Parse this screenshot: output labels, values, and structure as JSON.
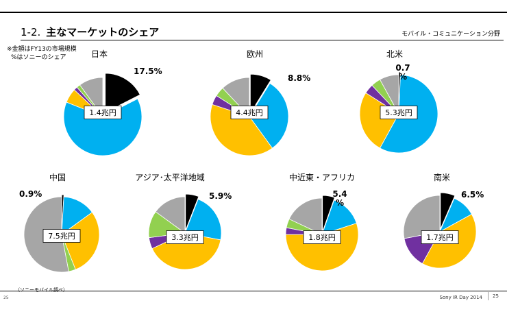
{
  "header": {
    "section_number": "1-2.",
    "title": "主なマーケットのシェア",
    "division": "モバイル・コミュニケーション分野"
  },
  "note": {
    "line1": "※金額はFY13の市場規模",
    "line2": "%はソニーのシェア"
  },
  "footer": {
    "source": "（ソニーモバイル調べ）",
    "page_left": "25",
    "event": "Sony IR Day 2014",
    "page_right": "25"
  },
  "colors": {
    "sony": "#000000",
    "blue": "#00b0f0",
    "orange": "#ffc000",
    "purple": "#7030a0",
    "green": "#92d050",
    "gray": "#a6a6a6"
  },
  "chart_data": [
    {
      "type": "pie",
      "title": "日本",
      "market_size": "1.4兆円",
      "share_label": "17.5%",
      "slices": [
        {
          "name": "sony",
          "value": 17.5
        },
        {
          "name": "blue",
          "value": 63.5
        },
        {
          "name": "orange",
          "value": 6
        },
        {
          "name": "purple",
          "value": 1.5
        },
        {
          "name": "green",
          "value": 1.5
        },
        {
          "name": "gray",
          "value": 10
        }
      ]
    },
    {
      "type": "pie",
      "title": "欧州",
      "market_size": "4.4兆円",
      "share_label": "8.8%",
      "slices": [
        {
          "name": "sony",
          "value": 8.8
        },
        {
          "name": "blue",
          "value": 31.2
        },
        {
          "name": "orange",
          "value": 40
        },
        {
          "name": "purple",
          "value": 4
        },
        {
          "name": "green",
          "value": 4
        },
        {
          "name": "gray",
          "value": 12
        }
      ]
    },
    {
      "type": "pie",
      "title": "北米",
      "market_size": "5.3兆円",
      "share_label": "0.7\n%",
      "slices": [
        {
          "name": "sony",
          "value": 0.7
        },
        {
          "name": "blue",
          "value": 57.3
        },
        {
          "name": "orange",
          "value": 26
        },
        {
          "name": "purple",
          "value": 4
        },
        {
          "name": "green",
          "value": 4
        },
        {
          "name": "gray",
          "value": 8
        }
      ]
    },
    {
      "type": "pie",
      "title": "中国",
      "market_size": "7.5兆円",
      "share_label": "0.9%",
      "slices": [
        {
          "name": "sony",
          "value": 0.9
        },
        {
          "name": "blue",
          "value": 14.1
        },
        {
          "name": "orange",
          "value": 29
        },
        {
          "name": "green",
          "value": 3
        },
        {
          "name": "gray",
          "value": 53
        }
      ]
    },
    {
      "type": "pie",
      "title": "アジア･太平洋地域",
      "market_size": "3.3兆円",
      "share_label": "5.9%",
      "slices": [
        {
          "name": "sony",
          "value": 5.9
        },
        {
          "name": "blue",
          "value": 22.1
        },
        {
          "name": "orange",
          "value": 40
        },
        {
          "name": "purple",
          "value": 5
        },
        {
          "name": "green",
          "value": 12
        },
        {
          "name": "gray",
          "value": 15
        }
      ]
    },
    {
      "type": "pie",
      "title": "中近東・アフリカ",
      "market_size": "1.8兆円",
      "share_label": "5.4\n%",
      "slices": [
        {
          "name": "sony",
          "value": 5.4
        },
        {
          "name": "blue",
          "value": 14.6
        },
        {
          "name": "orange",
          "value": 55
        },
        {
          "name": "purple",
          "value": 3
        },
        {
          "name": "green",
          "value": 4
        },
        {
          "name": "gray",
          "value": 18
        }
      ]
    },
    {
      "type": "pie",
      "title": "南米",
      "market_size": "1.7兆円",
      "share_label": "6.5%",
      "slices": [
        {
          "name": "sony",
          "value": 6.5
        },
        {
          "name": "blue",
          "value": 10.5
        },
        {
          "name": "orange",
          "value": 41
        },
        {
          "name": "purple",
          "value": 14
        },
        {
          "name": "gray",
          "value": 28
        }
      ]
    }
  ]
}
